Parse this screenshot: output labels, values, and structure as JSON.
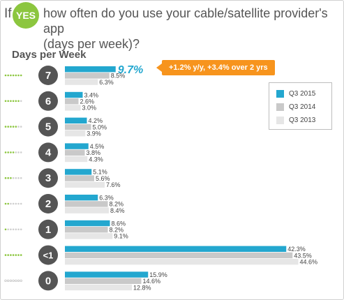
{
  "header": {
    "if_label": "If",
    "yes_label": "YES",
    "question_line1": "how often do you use your cable/satellite provider's app",
    "question_line2": "(days per week)?"
  },
  "callout": {
    "text": "+1.2% y/y, +3.4% over 2 yrs",
    "color": "#f7941d"
  },
  "colors": {
    "q3_2015": "#23a7cf",
    "q3_2014": "#c9c9c9",
    "q3_2013": "#e6e6e6",
    "badge": "#555555",
    "dot_on": "#8cc63f",
    "dot_off": "#cfcfcf",
    "yes_green": "#8cc63f"
  },
  "chart_data": {
    "type": "bar",
    "title": "Days per Week",
    "categories": [
      "7",
      "6",
      "5",
      "4",
      "3",
      "2",
      "1",
      "<1",
      "0"
    ],
    "active_dots": [
      7,
      6,
      5,
      4,
      3,
      2,
      1,
      0,
      0
    ],
    "highlight_dots": [
      7,
      6,
      5,
      4,
      3,
      2,
      1,
      7,
      0
    ],
    "series": [
      {
        "name": "Q3 2015",
        "values": [
          9.7,
          3.4,
          4.2,
          4.5,
          5.1,
          6.3,
          8.6,
          42.3,
          15.9
        ],
        "labels": [
          "9.7%",
          "3.4%",
          "4.2%",
          "4.5%",
          "5.1%",
          "6.3%",
          "8.6%",
          "42.3%",
          "15.9%"
        ]
      },
      {
        "name": "Q3 2014",
        "values": [
          8.5,
          2.6,
          5.0,
          3.8,
          5.6,
          8.2,
          8.2,
          43.5,
          14.6
        ],
        "labels": [
          "8.5%",
          "2.6%",
          "5.0%",
          "3.8%",
          "5.6%",
          "8.2%",
          "8.2%",
          "43.5%",
          "14.6%"
        ]
      },
      {
        "name": "Q3 2013",
        "values": [
          6.3,
          3.0,
          3.9,
          4.3,
          7.6,
          8.4,
          9.1,
          44.6,
          12.8
        ],
        "labels": [
          "6.3%",
          "3.0%",
          "3.9%",
          "4.3%",
          "7.6%",
          "8.4%",
          "9.1%",
          "44.6%",
          "12.8%"
        ]
      }
    ],
    "legend_position": "right"
  }
}
